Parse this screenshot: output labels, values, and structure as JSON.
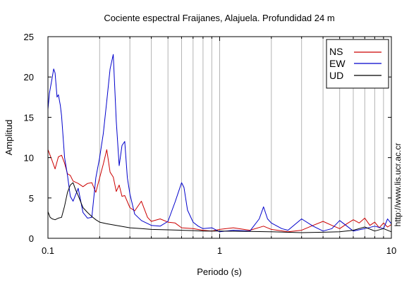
{
  "chart_data": {
    "type": "line",
    "title": "Cociente espectral Fraijanes, Alajuela. Profundidad 24 m",
    "xlabel": "Periodo (s)",
    "ylabel": "Amplitud",
    "xscale": "log",
    "xlim": [
      0.1,
      10
    ],
    "ylim": [
      0,
      25
    ],
    "xticks": [
      0.1,
      1,
      10
    ],
    "xtick_labels": [
      "0.1",
      "1",
      "10"
    ],
    "yticks": [
      0,
      5,
      10,
      15,
      20,
      25
    ],
    "ytick_labels": [
      "0",
      "5",
      "10",
      "15",
      "20",
      "25"
    ],
    "grid": "vertical minor and major lines",
    "legend": "top-right",
    "side_text": "http://www.lis.ucr.ac.cr",
    "series": [
      {
        "name": "NS",
        "color": "#cc0000",
        "x": [
          0.1,
          0.105,
          0.11,
          0.115,
          0.12,
          0.125,
          0.13,
          0.135,
          0.14,
          0.15,
          0.16,
          0.17,
          0.18,
          0.19,
          0.2,
          0.21,
          0.22,
          0.23,
          0.24,
          0.25,
          0.26,
          0.27,
          0.28,
          0.3,
          0.32,
          0.35,
          0.38,
          0.4,
          0.45,
          0.5,
          0.55,
          0.6,
          0.7,
          0.8,
          0.9,
          1.0,
          1.2,
          1.5,
          1.8,
          2.0,
          2.5,
          3.0,
          3.5,
          4.0,
          4.5,
          5.0,
          5.5,
          6.0,
          6.5,
          7.0,
          7.5,
          8.0,
          8.5,
          9.0,
          9.5,
          10.0
        ],
        "y": [
          11.0,
          9.8,
          8.6,
          10.1,
          10.3,
          9.3,
          8.0,
          7.8,
          7.1,
          6.8,
          6.4,
          6.8,
          6.9,
          5.7,
          7.5,
          9.2,
          11.0,
          8.2,
          7.6,
          5.8,
          6.6,
          5.2,
          5.3,
          3.8,
          3.4,
          4.6,
          2.6,
          2.1,
          2.4,
          2.0,
          1.9,
          1.3,
          1.2,
          1.0,
          0.9,
          1.1,
          1.3,
          1.0,
          1.5,
          1.1,
          0.8,
          1.0,
          1.6,
          2.1,
          1.6,
          1.2,
          1.8,
          2.3,
          1.9,
          2.5,
          1.6,
          2.0,
          1.3,
          1.9,
          1.4,
          1.7
        ]
      },
      {
        "name": "EW",
        "color": "#0000cc",
        "x": [
          0.1,
          0.102,
          0.105,
          0.108,
          0.11,
          0.113,
          0.115,
          0.118,
          0.12,
          0.125,
          0.13,
          0.135,
          0.14,
          0.15,
          0.16,
          0.17,
          0.18,
          0.19,
          0.2,
          0.21,
          0.22,
          0.23,
          0.24,
          0.25,
          0.26,
          0.27,
          0.28,
          0.29,
          0.3,
          0.32,
          0.35,
          0.4,
          0.45,
          0.5,
          0.55,
          0.6,
          0.62,
          0.65,
          0.7,
          0.75,
          0.8,
          0.9,
          1.0,
          1.2,
          1.5,
          1.7,
          1.8,
          1.9,
          2.0,
          2.3,
          2.5,
          3.0,
          3.5,
          4.0,
          4.5,
          5.0,
          6.0,
          7.0,
          8.0,
          9.0,
          9.5,
          10.0
        ],
        "y": [
          16.0,
          18.0,
          19.5,
          21.0,
          20.5,
          17.5,
          17.8,
          16.5,
          15.2,
          10.0,
          7.8,
          5.2,
          4.6,
          6.2,
          3.2,
          2.5,
          2.6,
          7.5,
          10.0,
          13.0,
          17.0,
          21.0,
          22.8,
          14.5,
          9.0,
          11.5,
          12.0,
          7.5,
          5.5,
          3.0,
          2.2,
          1.6,
          1.5,
          2.1,
          4.5,
          6.9,
          6.3,
          3.5,
          2.0,
          1.5,
          1.2,
          1.3,
          0.8,
          1.0,
          0.9,
          2.4,
          3.9,
          2.4,
          1.9,
          1.2,
          1.0,
          2.4,
          1.5,
          0.9,
          1.2,
          2.2,
          0.9,
          1.2,
          1.5,
          1.2,
          2.4,
          1.8
        ]
      },
      {
        "name": "UD",
        "color": "#000000",
        "x": [
          0.1,
          0.103,
          0.106,
          0.11,
          0.115,
          0.12,
          0.125,
          0.13,
          0.135,
          0.14,
          0.145,
          0.15,
          0.16,
          0.17,
          0.18,
          0.19,
          0.2,
          0.22,
          0.25,
          0.3,
          0.35,
          0.4,
          0.5,
          0.6,
          0.7,
          0.8,
          1.0,
          1.5,
          2.0,
          3.0,
          4.0,
          5.0,
          6.0,
          7.0,
          8.0,
          9.0,
          10.0
        ],
        "y": [
          3.3,
          2.6,
          2.4,
          2.3,
          2.5,
          2.6,
          4.0,
          5.7,
          6.6,
          6.9,
          6.0,
          5.3,
          3.8,
          3.2,
          2.7,
          2.3,
          2.0,
          1.8,
          1.6,
          1.3,
          1.2,
          1.1,
          1.05,
          1.0,
          0.95,
          0.9,
          0.9,
          0.85,
          0.8,
          0.7,
          0.75,
          0.8,
          1.0,
          1.4,
          0.9,
          1.2,
          0.8
        ]
      }
    ]
  }
}
